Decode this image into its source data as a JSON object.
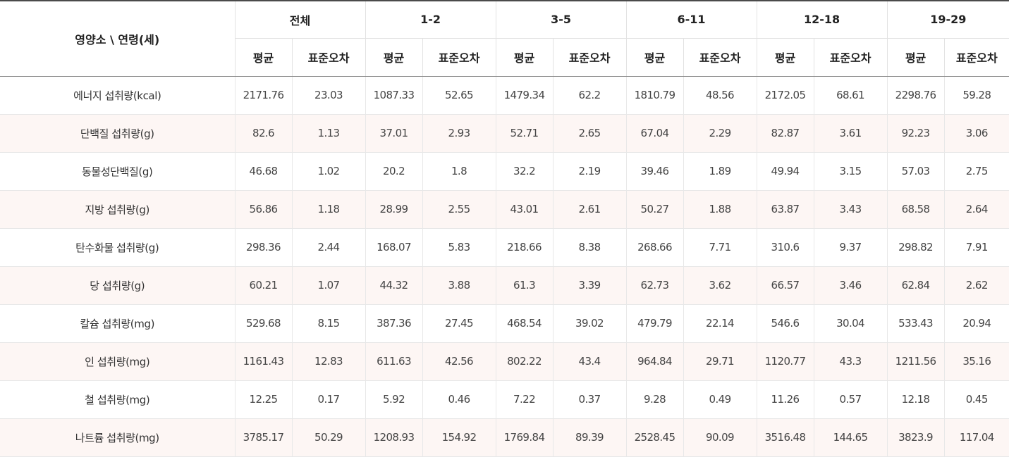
{
  "header": {
    "corner": "영양소 \\ 연령(세)",
    "groups": [
      "전체",
      "1-2",
      "3-5",
      "6-11",
      "12-18",
      "19-29"
    ],
    "sub": [
      "평균",
      "표준오차"
    ]
  },
  "rows": [
    {
      "label": "에너지 섭취량(kcal)",
      "values": [
        "2171.76",
        "23.03",
        "1087.33",
        "52.65",
        "1479.34",
        "62.2",
        "1810.79",
        "48.56",
        "2172.05",
        "68.61",
        "2298.76",
        "59.28"
      ]
    },
    {
      "label": "단백질 섭취량(g)",
      "values": [
        "82.6",
        "1.13",
        "37.01",
        "2.93",
        "52.71",
        "2.65",
        "67.04",
        "2.29",
        "82.87",
        "3.61",
        "92.23",
        "3.06"
      ]
    },
    {
      "label": "동물성단백질(g)",
      "values": [
        "46.68",
        "1.02",
        "20.2",
        "1.8",
        "32.2",
        "2.19",
        "39.46",
        "1.89",
        "49.94",
        "3.15",
        "57.03",
        "2.75"
      ]
    },
    {
      "label": "지방 섭취량(g)",
      "values": [
        "56.86",
        "1.18",
        "28.99",
        "2.55",
        "43.01",
        "2.61",
        "50.27",
        "1.88",
        "63.87",
        "3.43",
        "68.58",
        "2.64"
      ]
    },
    {
      "label": "탄수화물 섭취량(g)",
      "values": [
        "298.36",
        "2.44",
        "168.07",
        "5.83",
        "218.66",
        "8.38",
        "268.66",
        "7.71",
        "310.6",
        "9.37",
        "298.82",
        "7.91"
      ]
    },
    {
      "label": "당 섭취량(g)",
      "values": [
        "60.21",
        "1.07",
        "44.32",
        "3.88",
        "61.3",
        "3.39",
        "62.73",
        "3.62",
        "66.57",
        "3.46",
        "62.84",
        "2.62"
      ]
    },
    {
      "label": "칼슘 섭취량(mg)",
      "values": [
        "529.68",
        "8.15",
        "387.36",
        "27.45",
        "468.54",
        "39.02",
        "479.79",
        "22.14",
        "546.6",
        "30.04",
        "533.43",
        "20.94"
      ]
    },
    {
      "label": "인 섭취량(mg)",
      "values": [
        "1161.43",
        "12.83",
        "611.63",
        "42.56",
        "802.22",
        "43.4",
        "964.84",
        "29.71",
        "1120.77",
        "43.3",
        "1211.56",
        "35.16"
      ]
    },
    {
      "label": "철 섭취량(mg)",
      "values": [
        "12.25",
        "0.17",
        "5.92",
        "0.46",
        "7.22",
        "0.37",
        "9.28",
        "0.49",
        "11.26",
        "0.57",
        "12.18",
        "0.45"
      ]
    },
    {
      "label": "나트륨 섭취량(mg)",
      "values": [
        "3785.17",
        "50.29",
        "1208.93",
        "154.92",
        "1769.84",
        "89.39",
        "2528.45",
        "90.09",
        "3516.48",
        "144.65",
        "3823.9",
        "117.04"
      ]
    }
  ]
}
